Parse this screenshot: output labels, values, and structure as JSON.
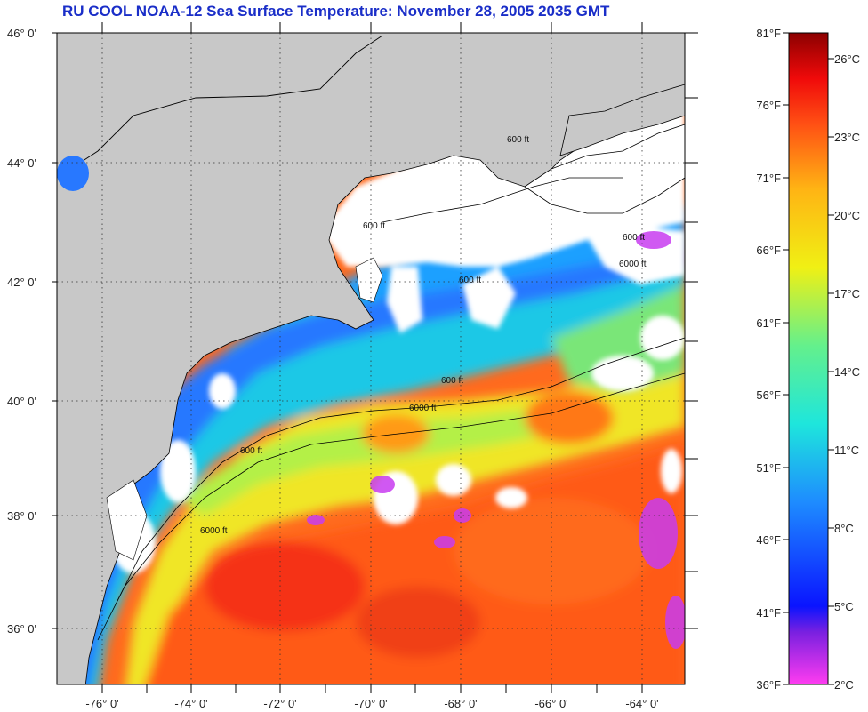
{
  "title": "RU COOL  NOAA-12  Sea Surface Temperature:  November 28, 2005 2035 GMT",
  "map": {
    "lat_labels": [
      "46° 0'",
      "44° 0'",
      "42° 0'",
      "40° 0'",
      "38° 0'",
      "36° 0'"
    ],
    "lon_labels": [
      "-76° 0'",
      "-74° 0'",
      "-72° 0'",
      "-70° 0'",
      "-68° 0'",
      "-66° 0'",
      "-64° 0'"
    ],
    "contour_labels": [
      "600 ft",
      "600 ft",
      "600 ft",
      "6000 ft",
      "600 ft",
      "600 ft",
      "6000 ft",
      "600 ft",
      "6000 ft"
    ],
    "colors": {
      "land": "#c8c8c8",
      "cloud": "#ffffff",
      "warm": "#ff5a14",
      "mid": "#ffd21e",
      "cool": "#28e6c8",
      "cold": "#1e5aff"
    }
  },
  "colorbar": {
    "fahrenheit_labels": [
      "81°F",
      "76°F",
      "71°F",
      "66°F",
      "61°F",
      "56°F",
      "51°F",
      "46°F",
      "41°F",
      "36°F"
    ],
    "celsius_labels": [
      "26°C",
      "23°C",
      "20°C",
      "17°C",
      "14°C",
      "11°C",
      "8°C",
      "5°C",
      "2°C"
    ],
    "range_f": [
      36,
      81
    ],
    "range_c": [
      2,
      27
    ]
  }
}
